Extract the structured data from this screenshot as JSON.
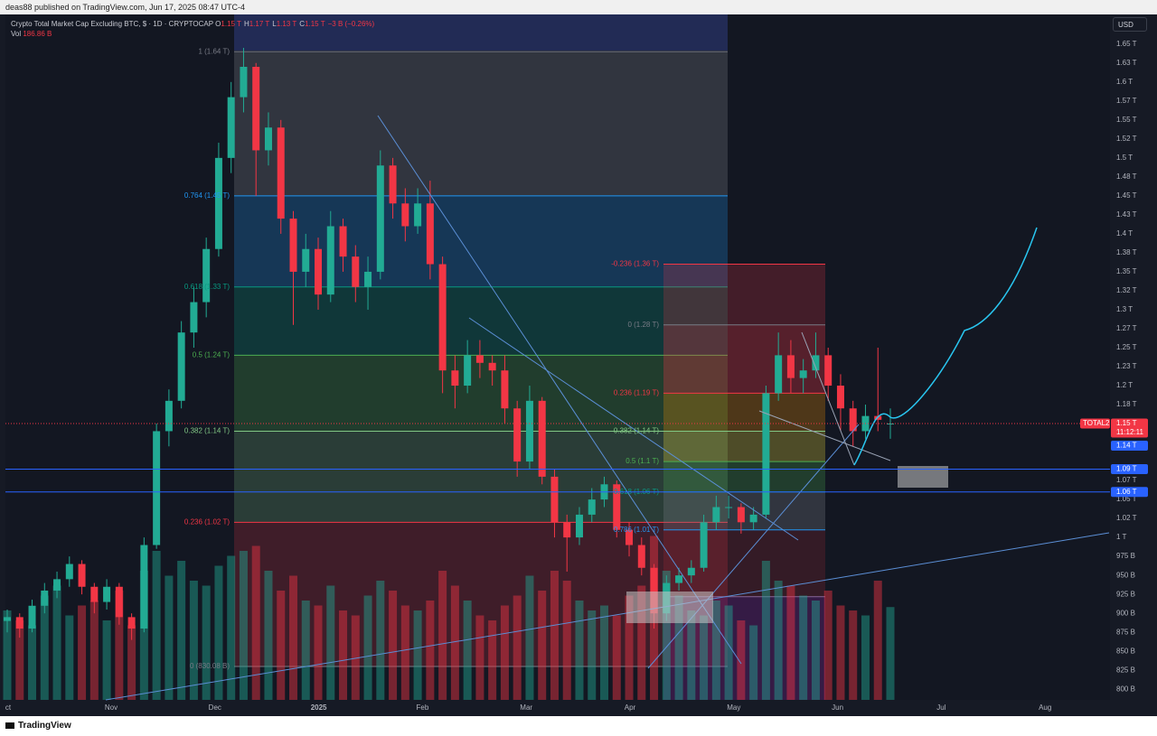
{
  "header": {
    "published": "deas88 published on TradingView.com, Jun 17, 2025 08:47 UTC-4"
  },
  "chart_data": {
    "type": "candlestick",
    "title": "Crypto Total Market Cap Excluding BTC, $ · 1D · CRYPTOCAP",
    "ohlc_legend": [
      [
        "O",
        "1.15 T"
      ],
      [
        "H",
        "1.17 T"
      ],
      [
        "L",
        "1.13 T"
      ],
      [
        "C",
        "1.15 T"
      ],
      [
        "",
        "−3 B (−0.26%)"
      ]
    ],
    "volume_legend": {
      "label": "Vol",
      "value": "186.86 B"
    },
    "currency": "USD",
    "categories": [
      "ct",
      "Nov",
      "Dec",
      "2025",
      "Feb",
      "Mar",
      "Apr",
      "May",
      "Jun",
      "Jul",
      "Aug"
    ],
    "up_color": "#22ab94",
    "down_color": "#f23645",
    "ylim": [
      786,
      1689
    ],
    "yticks": [
      {
        "value": 1650,
        "label": "1.65 T"
      },
      {
        "value": 1625,
        "label": "1.63 T"
      },
      {
        "value": 1600,
        "label": "1.6 T"
      },
      {
        "value": 1575,
        "label": "1.57 T"
      },
      {
        "value": 1550,
        "label": "1.55 T"
      },
      {
        "value": 1525,
        "label": "1.52 T"
      },
      {
        "value": 1500,
        "label": "1.5 T"
      },
      {
        "value": 1475,
        "label": "1.48 T"
      },
      {
        "value": 1450,
        "label": "1.45 T"
      },
      {
        "value": 1425,
        "label": "1.43 T"
      },
      {
        "value": 1400,
        "label": "1.4 T"
      },
      {
        "value": 1375,
        "label": "1.38 T"
      },
      {
        "value": 1350,
        "label": "1.35 T"
      },
      {
        "value": 1325,
        "label": "1.32 T"
      },
      {
        "value": 1300,
        "label": "1.3 T"
      },
      {
        "value": 1275,
        "label": "1.27 T"
      },
      {
        "value": 1250,
        "label": "1.25 T"
      },
      {
        "value": 1225,
        "label": "1.23 T"
      },
      {
        "value": 1200,
        "label": "1.2 T"
      },
      {
        "value": 1175,
        "label": "1.18 T"
      },
      {
        "value": 1075,
        "label": "1.07 T"
      },
      {
        "value": 1050,
        "label": "1.05 T"
      },
      {
        "value": 1025,
        "label": "1.02 T"
      },
      {
        "value": 1000,
        "label": "1 T"
      },
      {
        "value": 975,
        "label": "975 B"
      },
      {
        "value": 950,
        "label": "950 B"
      },
      {
        "value": 925,
        "label": "925 B"
      },
      {
        "value": 900,
        "label": "900 B"
      },
      {
        "value": 875,
        "label": "875 B"
      },
      {
        "value": 850,
        "label": "850 B"
      },
      {
        "value": 825,
        "label": "825 B"
      },
      {
        "value": 800,
        "label": "800 B"
      }
    ],
    "ohlc": [
      [
        890,
        905,
        875,
        895
      ],
      [
        895,
        900,
        868,
        880
      ],
      [
        880,
        918,
        875,
        910
      ],
      [
        910,
        940,
        900,
        930
      ],
      [
        930,
        955,
        920,
        945
      ],
      [
        945,
        975,
        935,
        965
      ],
      [
        965,
        970,
        925,
        935
      ],
      [
        935,
        940,
        900,
        915
      ],
      [
        915,
        945,
        905,
        935
      ],
      [
        935,
        940,
        885,
        895
      ],
      [
        895,
        900,
        865,
        880
      ],
      [
        880,
        1000,
        875,
        990
      ],
      [
        990,
        1150,
        985,
        1140
      ],
      [
        1140,
        1195,
        1120,
        1180
      ],
      [
        1180,
        1285,
        1170,
        1270
      ],
      [
        1270,
        1330,
        1250,
        1310
      ],
      [
        1310,
        1395,
        1290,
        1380
      ],
      [
        1380,
        1520,
        1370,
        1500
      ],
      [
        1500,
        1600,
        1480,
        1580
      ],
      [
        1580,
        1645,
        1560,
        1620
      ],
      [
        1620,
        1625,
        1450,
        1510
      ],
      [
        1510,
        1560,
        1490,
        1540
      ],
      [
        1540,
        1550,
        1400,
        1420
      ],
      [
        1420,
        1430,
        1280,
        1350
      ],
      [
        1350,
        1400,
        1330,
        1380
      ],
      [
        1380,
        1395,
        1300,
        1320
      ],
      [
        1320,
        1430,
        1310,
        1410
      ],
      [
        1410,
        1420,
        1350,
        1370
      ],
      [
        1370,
        1385,
        1310,
        1330
      ],
      [
        1330,
        1370,
        1300,
        1350
      ],
      [
        1350,
        1510,
        1340,
        1490
      ],
      [
        1490,
        1500,
        1420,
        1440
      ],
      [
        1440,
        1460,
        1390,
        1410
      ],
      [
        1410,
        1460,
        1400,
        1440
      ],
      [
        1440,
        1470,
        1340,
        1360
      ],
      [
        1360,
        1370,
        1190,
        1220
      ],
      [
        1220,
        1240,
        1170,
        1200
      ],
      [
        1200,
        1260,
        1190,
        1240
      ],
      [
        1240,
        1260,
        1210,
        1230
      ],
      [
        1230,
        1240,
        1200,
        1220
      ],
      [
        1220,
        1240,
        1150,
        1170
      ],
      [
        1170,
        1180,
        1080,
        1100
      ],
      [
        1100,
        1200,
        1090,
        1180
      ],
      [
        1180,
        1185,
        1070,
        1080
      ],
      [
        1080,
        1090,
        1000,
        1020
      ],
      [
        1020,
        1030,
        955,
        1000
      ],
      [
        1000,
        1040,
        990,
        1030
      ],
      [
        1030,
        1065,
        1020,
        1050
      ],
      [
        1050,
        1080,
        1040,
        1070
      ],
      [
        1070,
        1075,
        1000,
        1010
      ],
      [
        1010,
        1020,
        975,
        990
      ],
      [
        990,
        1000,
        950,
        960
      ],
      [
        960,
        965,
        880,
        900
      ],
      [
        900,
        950,
        890,
        940
      ],
      [
        940,
        960,
        930,
        950
      ],
      [
        950,
        970,
        940,
        960
      ],
      [
        960,
        1030,
        955,
        1020
      ],
      [
        1020,
        1055,
        1010,
        1040
      ],
      [
        1040,
        1055,
        1025,
        1040
      ],
      [
        1040,
        1045,
        1005,
        1020
      ],
      [
        1020,
        1040,
        1010,
        1030
      ],
      [
        1030,
        1200,
        1025,
        1190
      ],
      [
        1190,
        1270,
        1180,
        1240
      ],
      [
        1240,
        1260,
        1190,
        1210
      ],
      [
        1210,
        1235,
        1190,
        1220
      ],
      [
        1220,
        1270,
        1210,
        1240
      ],
      [
        1240,
        1250,
        1180,
        1200
      ],
      [
        1200,
        1215,
        1140,
        1170
      ],
      [
        1170,
        1180,
        1120,
        1140
      ],
      [
        1140,
        1175,
        1130,
        1160
      ],
      [
        1160,
        1250,
        1140,
        1155
      ],
      [
        1150,
        1170,
        1130,
        1150
      ]
    ],
    "volume": [
      180,
      160,
      150,
      210,
      230,
      170,
      190,
      200,
      160,
      220,
      150,
      260,
      300,
      250,
      280,
      240,
      230,
      270,
      290,
      300,
      310,
      260,
      220,
      250,
      200,
      190,
      230,
      180,
      170,
      210,
      240,
      220,
      190,
      180,
      200,
      260,
      230,
      200,
      170,
      160,
      190,
      210,
      250,
      220,
      260,
      240,
      200,
      180,
      190,
      170,
      210,
      230,
      330,
      260,
      210,
      180,
      170,
      200,
      190,
      160,
      150,
      280,
      240,
      230,
      210,
      200,
      220,
      190,
      180,
      170,
      240,
      186.86
    ],
    "fib_left": {
      "levels": [
        {
          "value": 1640,
          "label": "1 (1.64 T)",
          "color": "#787b86"
        },
        {
          "value": 1450,
          "label": "0.764 (1.45 T)",
          "color": "#2196f3"
        },
        {
          "value": 1330,
          "label": "0.618 (1.33 T)",
          "color": "#089981"
        },
        {
          "value": 1240,
          "label": "0.5 (1.24 T)",
          "color": "#4caf50"
        },
        {
          "value": 1140,
          "label": "0.382 (1.14 T)",
          "color": "#81c784"
        },
        {
          "value": 1020,
          "label": "0.236 (1.02 T)",
          "color": "#f23645"
        },
        {
          "value": 830.08,
          "label": "0 (830.08 B)",
          "color": "#787b86"
        }
      ],
      "zone_colors": [
        "rgba(120,123,134,0.3)",
        "rgba(33,150,243,0.25)",
        "rgba(8,153,129,0.25)",
        "rgba(76,175,80,0.25)",
        "rgba(129,199,132,0.22)",
        "rgba(242,54,69,0.2)"
      ]
    },
    "fib_right": {
      "levels": [
        {
          "value": 1360,
          "label": "-0.236 (1.36 T)",
          "color": "#f23645"
        },
        {
          "value": 1280,
          "label": "0 (1.28 T)",
          "color": "#787b86"
        },
        {
          "value": 1190,
          "label": "0.236 (1.19 T)",
          "color": "#f23645"
        },
        {
          "value": 1140,
          "label": "0.382 (1.14 T)",
          "color": "#81c784"
        },
        {
          "value": 1100,
          "label": "0.5 (1.1 T)",
          "color": "#4caf50"
        },
        {
          "value": 1060,
          "label": "0.618 (1.06 T)",
          "color": "#089981"
        },
        {
          "value": 1010,
          "label": "0.786 (1.01 T)",
          "color": "#2196f3"
        },
        {
          "value": 922,
          "label": null,
          "color": "#787b86"
        }
      ],
      "zone_colors": [
        "rgba(242,54,69,0.22)",
        "rgba(242,54,69,0.3)",
        "rgba(255,152,0,0.25)",
        "rgba(255,235,59,0.25)",
        "rgba(76,175,80,0.25)",
        "rgba(120,123,134,0.3)",
        "rgba(242,54,69,0.15)"
      ]
    },
    "price_lines": [
      {
        "value": 1090,
        "label": "1.09 T"
      },
      {
        "value": 1060,
        "label": "1.06 T"
      }
    ],
    "badge": {
      "value": 1140,
      "label": "1.14 T"
    },
    "last_price": {
      "name": "TOTAL2",
      "value": 1150,
      "label": "1.15 T",
      "countdown": "11:12:11"
    }
  },
  "footer": {
    "brand": "TradingView"
  }
}
